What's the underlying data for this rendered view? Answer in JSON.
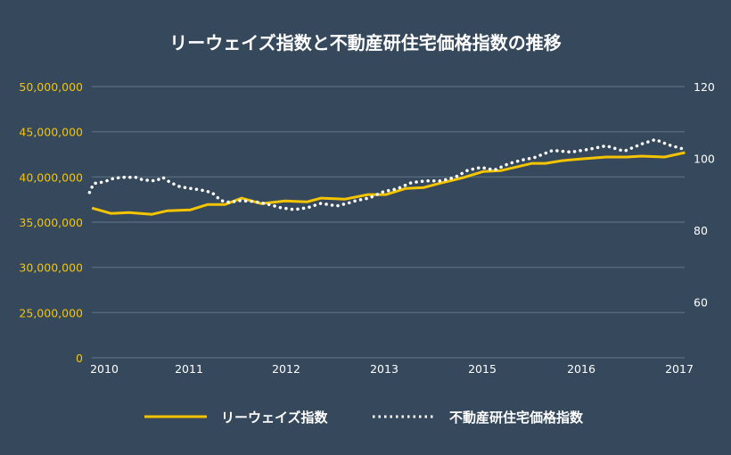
{
  "chart_data": {
    "type": "line",
    "title": "リーウェイズ指数と不動産研住宅価格指数の推移",
    "x_tick_labels": [
      "2010",
      "2011",
      "2012",
      "2013",
      "2015",
      "2016",
      "2017"
    ],
    "left_axis": {
      "ticks": [
        "0",
        "25,000,000",
        "30,000,000",
        "35,000,000",
        "40,000,000",
        "45,000,000",
        "50,000,000"
      ],
      "tick_values": [
        20000000,
        25000000,
        30000000,
        35000000,
        40000000,
        45000000,
        50000000
      ],
      "range": [
        20000000,
        50000000
      ],
      "color": "#f5c400"
    },
    "right_axis": {
      "ticks": [
        "60",
        "80",
        "100",
        "120"
      ],
      "tick_values": [
        60,
        80,
        100,
        120
      ],
      "range": [
        44.5,
        120
      ],
      "color": "#ffffff"
    },
    "grid": true,
    "legend_placement": "bottom",
    "series": [
      {
        "name": "リーウェイズ指数",
        "axis": "left",
        "color": "#f5c400",
        "style": "solid",
        "x": [
          2009.85,
          2010.08,
          2010.3,
          2010.58,
          2010.77,
          2011.05,
          2011.26,
          2011.47,
          2011.67,
          2011.91,
          2012.2,
          2012.47,
          2012.64,
          2012.93,
          2013.21,
          2013.43,
          2013.67,
          2013.89,
          2014.1,
          2014.37,
          2014.61,
          2014.83,
          2014.97,
          2015.21,
          2015.37,
          2015.57,
          2015.81,
          2016.11,
          2016.36,
          2016.54,
          2016.82,
          2017.07
        ],
        "values": [
          36560000,
          35970000,
          36070000,
          35870000,
          36260000,
          36360000,
          36950000,
          36950000,
          37650000,
          37050000,
          37350000,
          37250000,
          37650000,
          37550000,
          38050000,
          38050000,
          38730000,
          38830000,
          39330000,
          39920000,
          40600000,
          40700000,
          41000000,
          41500000,
          41500000,
          41800000,
          42000000,
          42200000,
          42200000,
          42300000,
          42200000,
          42700000
        ]
      },
      {
        "name": "不動産研住宅価格指数",
        "axis": "right",
        "color": "#ffffff",
        "style": "dotted",
        "x": [
          2009.82,
          2009.87,
          2009.95,
          2010.03,
          2010.12,
          2010.25,
          2010.38,
          2010.47,
          2010.63,
          2010.71,
          2010.79,
          2010.9,
          2011.01,
          2011.17,
          2011.31,
          2011.42,
          2011.53,
          2011.64,
          2011.82,
          2011.99,
          2012.15,
          2012.31,
          2012.47,
          2012.64,
          2012.83,
          2012.96,
          2013.07,
          2013.23,
          2013.4,
          2013.56,
          2013.74,
          2013.92,
          2014.1,
          2014.27,
          2014.43,
          2014.59,
          2014.75,
          2014.92,
          2015.08,
          2015.24,
          2015.46,
          2015.68,
          2015.89,
          2016.11,
          2016.33,
          2016.54,
          2016.71,
          2016.87,
          2017.03
        ],
        "values": [
          90.5,
          93,
          93.25,
          93.75,
          94.5,
          94.75,
          94.75,
          94,
          93.75,
          94.75,
          93.5,
          92.25,
          91.75,
          91.25,
          90.5,
          88.25,
          87.75,
          88.25,
          88,
          87.25,
          86.25,
          85.75,
          86.25,
          87.5,
          86.75,
          87.5,
          88.25,
          89,
          90.75,
          91.5,
          93.25,
          93.75,
          93.75,
          94.75,
          96.75,
          97.5,
          96.75,
          98.5,
          99.5,
          100.25,
          102.25,
          101.75,
          102.5,
          103.5,
          102,
          104,
          105.25,
          103.75,
          102.75
        ]
      }
    ]
  }
}
